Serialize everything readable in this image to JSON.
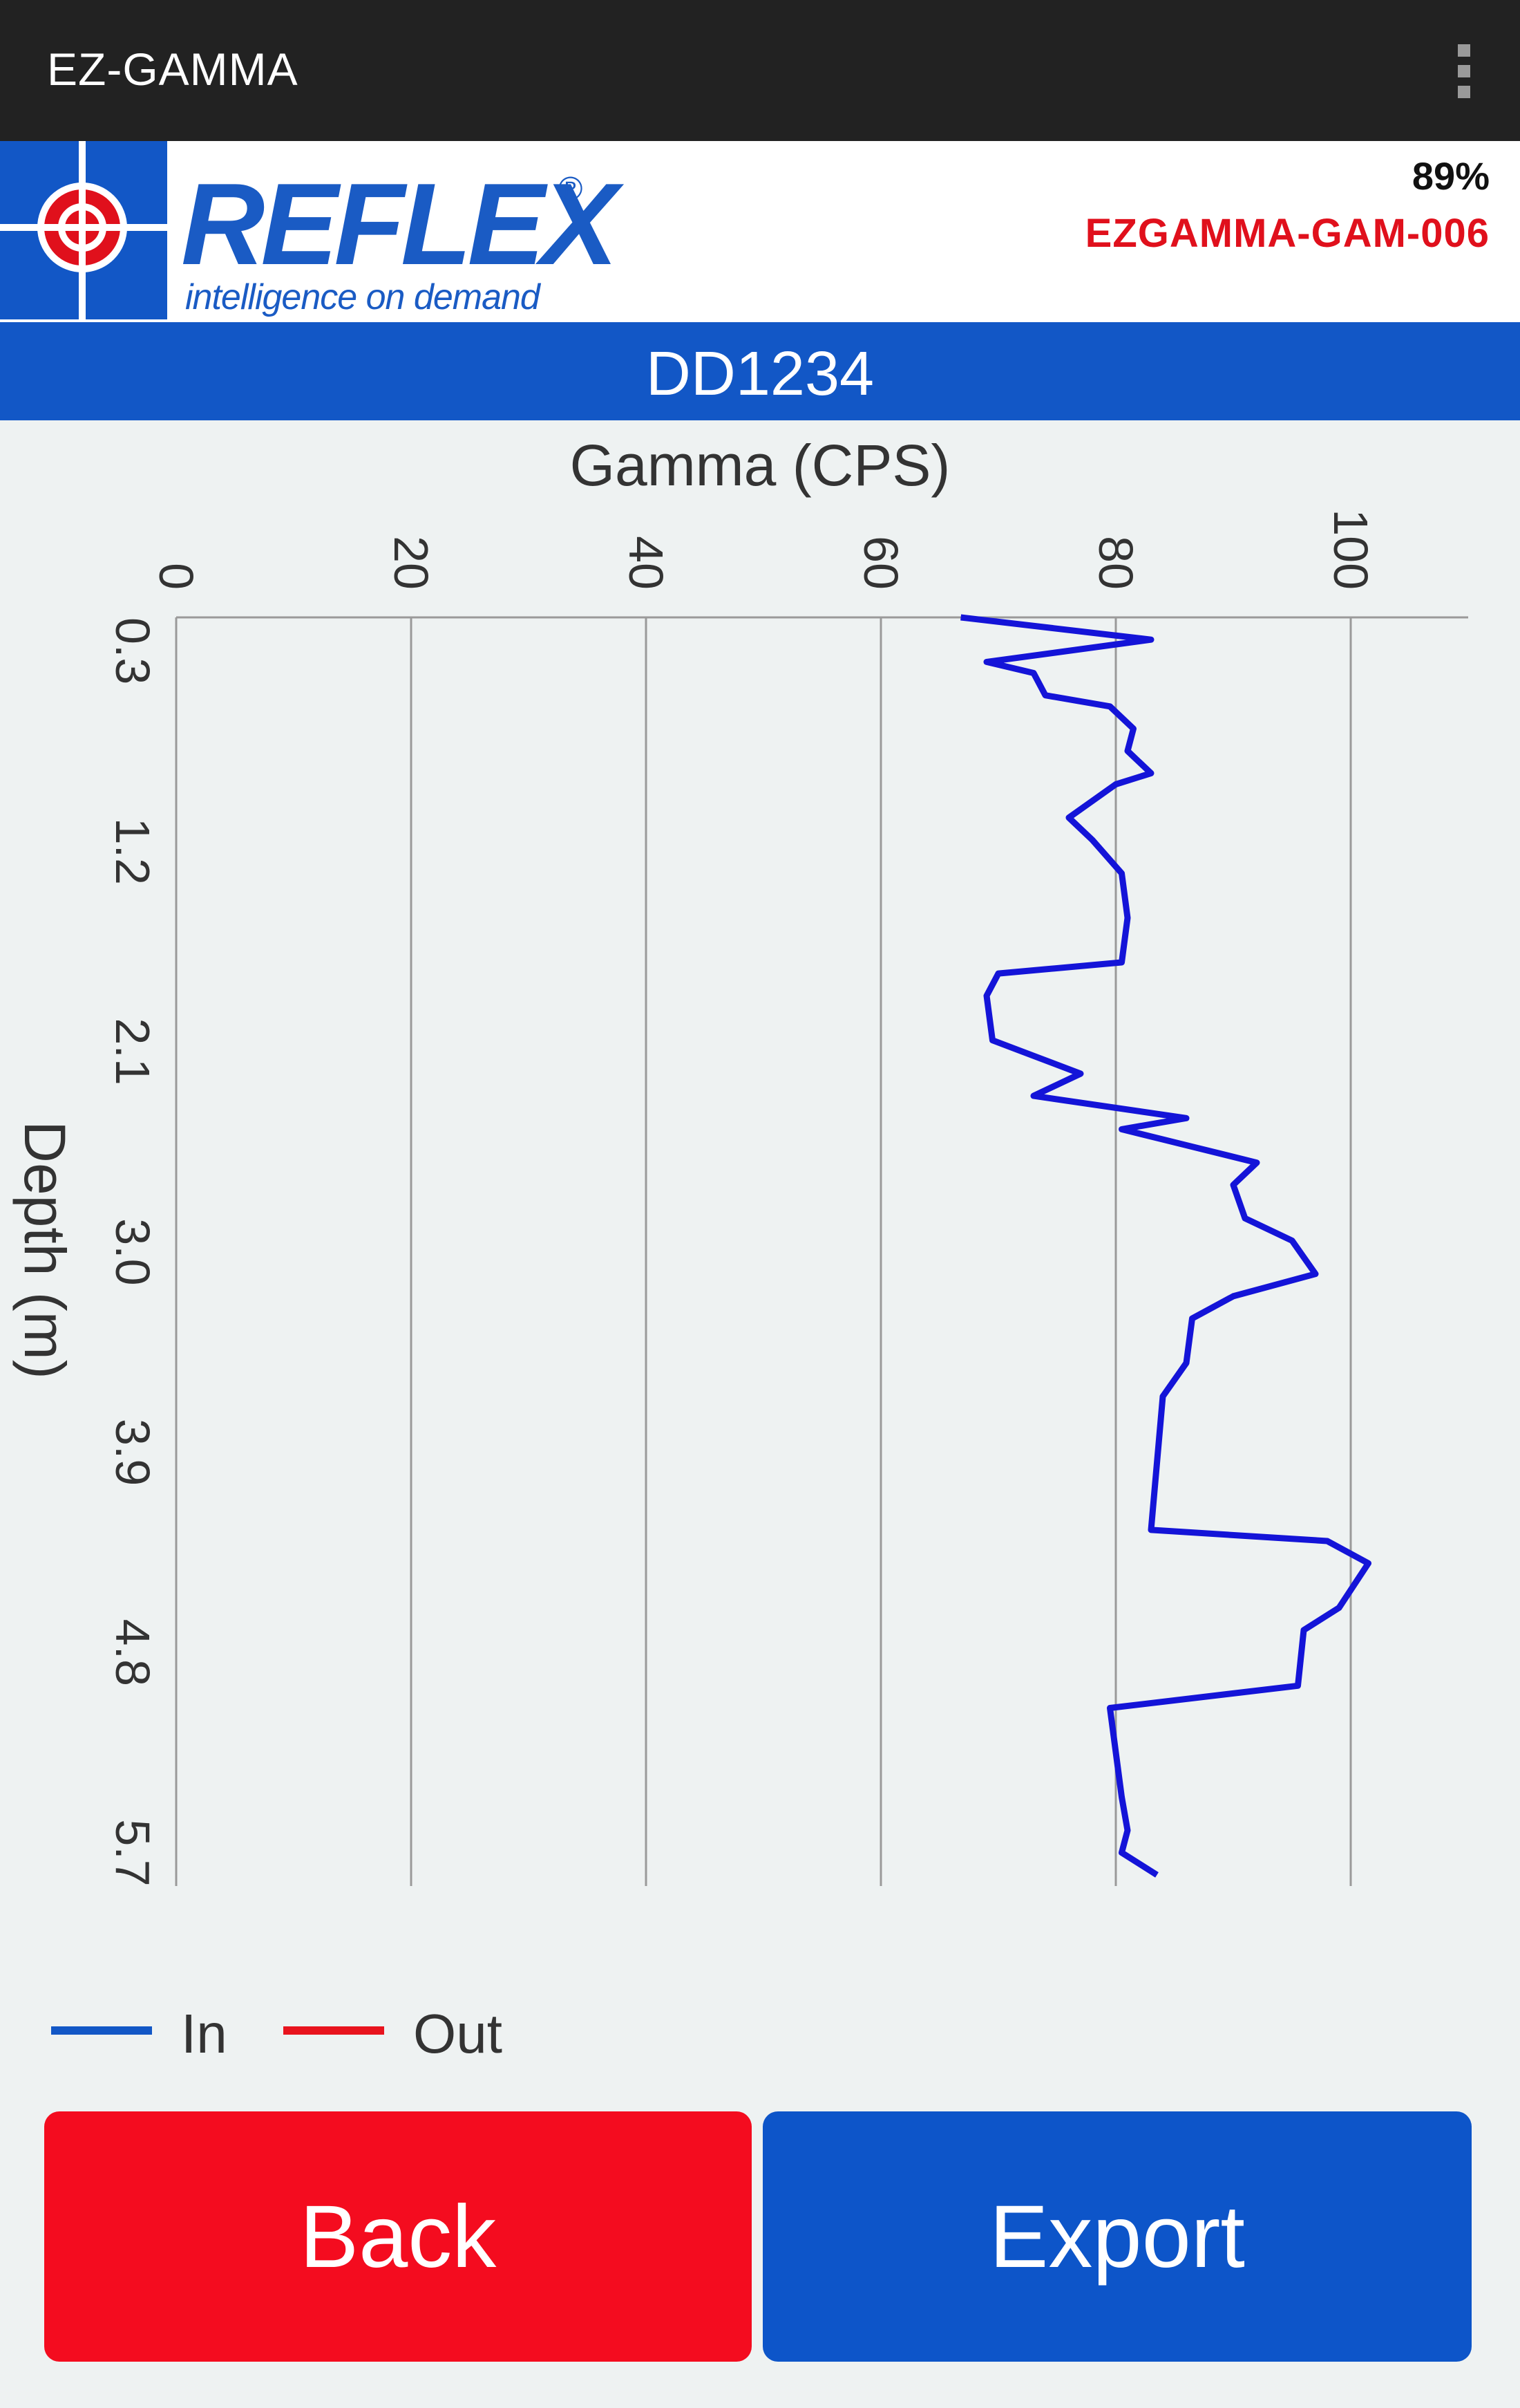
{
  "app_bar": {
    "title": "EZ-GAMMA",
    "menu_icon": "overflow-menu-icon"
  },
  "header": {
    "logo_text": "REFLEX",
    "logo_registered": "®",
    "logo_tagline": "intelligence on demand",
    "battery": "89%",
    "device_id": "EZGAMMA-GAM-006",
    "colors": {
      "brand_blue": "#1a5bc4",
      "device_red": "#e0101c"
    }
  },
  "hole": {
    "id": "DD1234"
  },
  "chart_data": {
    "type": "line",
    "title": "",
    "xlabel": "Gamma (CPS)",
    "ylabel": "Depth (m)",
    "orientation": "depth-down, gamma axis on top (rotated view)",
    "xlim": [
      0,
      110
    ],
    "ylim": [
      0.3,
      6.0
    ],
    "x_ticks": [
      "0",
      "20",
      "40",
      "60",
      "80",
      "100"
    ],
    "y_ticks": [
      "0.3",
      "1.2",
      "2.1",
      "3.0",
      "3.9",
      "4.8",
      "5.7"
    ],
    "grid": "vertical lines at gamma ticks",
    "legend": {
      "position": "bottom-left",
      "entries": [
        "In",
        "Out"
      ]
    },
    "series": [
      {
        "name": "In",
        "color": "#1414d8",
        "points": [
          [
            66.8,
            0.3
          ],
          [
            83.0,
            0.4
          ],
          [
            69.0,
            0.5
          ],
          [
            73.0,
            0.55
          ],
          [
            74.0,
            0.65
          ],
          [
            79.5,
            0.7
          ],
          [
            81.5,
            0.8
          ],
          [
            81.0,
            0.9
          ],
          [
            83.0,
            1.0
          ],
          [
            80.0,
            1.05
          ],
          [
            76.0,
            1.2
          ],
          [
            78.0,
            1.3
          ],
          [
            80.5,
            1.45
          ],
          [
            81.0,
            1.65
          ],
          [
            80.5,
            1.85
          ],
          [
            70.0,
            1.9
          ],
          [
            69.0,
            2.0
          ],
          [
            69.5,
            2.2
          ],
          [
            77.0,
            2.35
          ],
          [
            73.0,
            2.45
          ],
          [
            86.0,
            2.55
          ],
          [
            80.5,
            2.6
          ],
          [
            92.0,
            2.75
          ],
          [
            90.0,
            2.85
          ],
          [
            91.0,
            3.0
          ],
          [
            95.0,
            3.1
          ],
          [
            97.0,
            3.25
          ],
          [
            90.0,
            3.35
          ],
          [
            86.5,
            3.45
          ],
          [
            86.0,
            3.65
          ],
          [
            84.0,
            3.8
          ],
          [
            83.5,
            4.1
          ],
          [
            83.0,
            4.4
          ],
          [
            98.0,
            4.45
          ],
          [
            101.5,
            4.55
          ],
          [
            99.0,
            4.75
          ],
          [
            96.0,
            4.85
          ],
          [
            95.5,
            5.1
          ],
          [
            79.5,
            5.2
          ],
          [
            80.0,
            5.4
          ],
          [
            80.5,
            5.6
          ],
          [
            81.0,
            5.75
          ],
          [
            80.5,
            5.85
          ],
          [
            83.5,
            5.95
          ]
        ]
      },
      {
        "name": "Out",
        "color": "#e8141e",
        "points": []
      }
    ]
  },
  "buttons": {
    "back": "Back",
    "export": "Export",
    "colors": {
      "back": "#f40c1f",
      "export": "#0d55c9"
    }
  }
}
